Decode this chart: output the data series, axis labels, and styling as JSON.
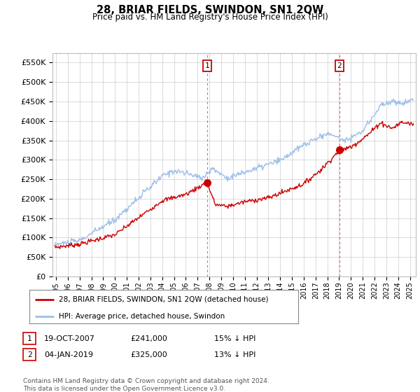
{
  "title": "28, BRIAR FIELDS, SWINDON, SN1 2QW",
  "subtitle": "Price paid vs. HM Land Registry's House Price Index (HPI)",
  "ylabel_ticks": [
    "£0",
    "£50K",
    "£100K",
    "£150K",
    "£200K",
    "£250K",
    "£300K",
    "£350K",
    "£400K",
    "£450K",
    "£500K",
    "£550K"
  ],
  "ytick_values": [
    0,
    50000,
    100000,
    150000,
    200000,
    250000,
    300000,
    350000,
    400000,
    450000,
    500000,
    550000
  ],
  "ylim": [
    0,
    575000
  ],
  "xlim_start": 1994.7,
  "xlim_end": 2025.5,
  "hpi_color": "#9dbfe8",
  "price_color": "#cc0000",
  "sale1_date": 2007.8,
  "sale1_price": 241000,
  "sale2_date": 2019.03,
  "sale2_price": 325000,
  "legend_line1": "28, BRIAR FIELDS, SWINDON, SN1 2QW (detached house)",
  "legend_line2": "HPI: Average price, detached house, Swindon",
  "table_row1": [
    "1",
    "19-OCT-2007",
    "£241,000",
    "15% ↓ HPI"
  ],
  "table_row2": [
    "2",
    "04-JAN-2019",
    "£325,000",
    "13% ↓ HPI"
  ],
  "footnote": "Contains HM Land Registry data © Crown copyright and database right 2024.\nThis data is licensed under the Open Government Licence v3.0.",
  "xtick_years": [
    1995,
    1996,
    1997,
    1998,
    1999,
    2000,
    2001,
    2002,
    2003,
    2004,
    2005,
    2006,
    2007,
    2008,
    2009,
    2010,
    2011,
    2012,
    2013,
    2014,
    2015,
    2016,
    2017,
    2018,
    2019,
    2020,
    2021,
    2022,
    2023,
    2024,
    2025
  ],
  "background_color": "#ffffff",
  "grid_color": "#cccccc",
  "fig_width": 6.0,
  "fig_height": 5.6,
  "dpi": 100
}
